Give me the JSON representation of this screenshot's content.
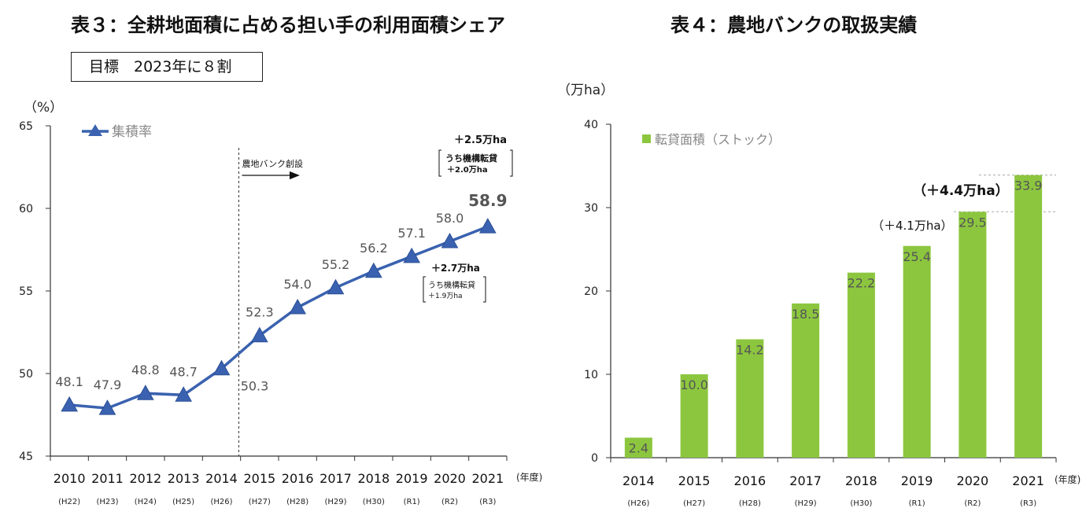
{
  "left_title": "表３：全耕地面積に占める担い手の利用面積シェア",
  "right_title": "表４：農地バンクの取扱実績",
  "target_label": "目標　2023年に８割",
  "chart_data": [
    {
      "type": "line",
      "title": "表３：全耕地面積に占める担い手の利用面積シェア",
      "yunit": "（%）",
      "xunit": "(年度)",
      "ylim": [
        45,
        65
      ],
      "yticks": [
        45,
        50,
        55,
        60,
        65
      ],
      "legend": "集積率",
      "categories": [
        "2010",
        "2011",
        "2012",
        "2013",
        "2014",
        "2015",
        "2016",
        "2017",
        "2018",
        "2019",
        "2020",
        "2021"
      ],
      "subcategories": [
        "(H22)",
        "(H23)",
        "(H24)",
        "(H25)",
        "(H26)",
        "(H27)",
        "(H28)",
        "(H29)",
        "(H30)",
        "(R1)",
        "(R2)",
        "(R3)"
      ],
      "values": [
        48.1,
        47.9,
        48.8,
        48.7,
        50.3,
        52.3,
        54.0,
        55.2,
        56.2,
        57.1,
        58.0,
        58.9
      ],
      "data_labels": [
        "48.1",
        "47.9",
        "48.8",
        "48.7",
        "50.3",
        "52.3",
        "54.0",
        "55.2",
        "56.2",
        "57.1",
        "58.0",
        "58.9"
      ],
      "divider_label": "農地バンク創設",
      "annotation1": {
        "main": "＋2.7万ha",
        "sub1": "うち機構転貸",
        "sub2": "＋1.9万ha"
      },
      "annotation2": {
        "main": "＋2.5万ha",
        "sub1": "うち機構転貸",
        "sub2": "＋2.0万ha"
      }
    },
    {
      "type": "bar",
      "title": "表４：農地バンクの取扱実績",
      "yunit": "（万ha）",
      "xunit": "(年度)",
      "ylim": [
        0,
        40
      ],
      "yticks": [
        0,
        10,
        20,
        30,
        40
      ],
      "legend": "転貸面積（ストック）",
      "categories": [
        "2014",
        "2015",
        "2016",
        "2017",
        "2018",
        "2019",
        "2020",
        "2021"
      ],
      "subcategories": [
        "(H26)",
        "(H27)",
        "(H28)",
        "(H29)",
        "(H30)",
        "(R1)",
        "(R2)",
        "(R3)"
      ],
      "values": [
        2.4,
        10.0,
        14.2,
        18.5,
        22.2,
        25.4,
        29.5,
        33.9
      ],
      "data_labels": [
        "2.4",
        "10.0",
        "14.2",
        "18.5",
        "22.2",
        "25.4",
        "29.5",
        "33.9"
      ],
      "annotation1": "（＋4.1万ha）",
      "annotation2": "（＋4.4万ha）",
      "bar_color": "#8cc63f"
    }
  ]
}
